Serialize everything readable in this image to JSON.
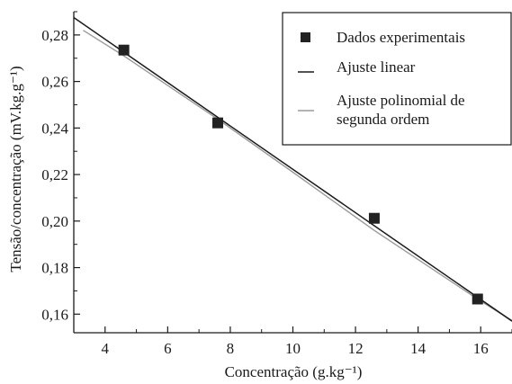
{
  "chart_data": {
    "type": "scatter",
    "title": "",
    "xlabel": "Concentração (g.kg⁻¹)",
    "ylabel": "Tensão/concentração (mV.kg.g⁻¹)",
    "xlim": [
      3,
      17
    ],
    "ylim": [
      0.152,
      0.29
    ],
    "x_ticks": [
      4,
      6,
      8,
      10,
      12,
      14,
      16
    ],
    "y_ticks": [
      0.16,
      0.18,
      0.2,
      0.22,
      0.24,
      0.26,
      0.28
    ],
    "x_tick_labels": [
      "4",
      "6",
      "8",
      "10",
      "12",
      "14",
      "16"
    ],
    "y_tick_labels": [
      "0,16",
      "0,18",
      "0,20",
      "0,22",
      "0,24",
      "0,26",
      "0,28"
    ],
    "grid": false,
    "legend_position": "top-right",
    "series": [
      {
        "name": "Dados experimentais",
        "kind": "markers",
        "marker": "square",
        "color": "#222222",
        "points": [
          {
            "x": 4.6,
            "y": 0.2735
          },
          {
            "x": 7.6,
            "y": 0.2422
          },
          {
            "x": 12.6,
            "y": 0.2012
          },
          {
            "x": 15.9,
            "y": 0.1665
          }
        ]
      },
      {
        "name": "Ajuste linear",
        "kind": "line",
        "color": "#1a1a1a",
        "points": [
          {
            "x": 3.0,
            "y": 0.2875
          },
          {
            "x": 17.0,
            "y": 0.157
          }
        ]
      },
      {
        "name": "Ajuste polinomial de segunda ordem",
        "kind": "curve",
        "color": "#9a9a9a",
        "points": [
          {
            "x": 3.3,
            "y": 0.282
          },
          {
            "x": 4.6,
            "y": 0.271
          },
          {
            "x": 7.6,
            "y": 0.2438
          },
          {
            "x": 10.0,
            "y": 0.221
          },
          {
            "x": 12.6,
            "y": 0.196
          },
          {
            "x": 15.9,
            "y": 0.1665
          },
          {
            "x": 17.0,
            "y": 0.1572
          }
        ]
      }
    ]
  },
  "legend": {
    "items": [
      {
        "lines": [
          "Dados experimentais"
        ]
      },
      {
        "lines": [
          "Ajuste linear"
        ]
      },
      {
        "lines": [
          "Ajuste polinomial de",
          "segunda ordem"
        ]
      }
    ]
  }
}
